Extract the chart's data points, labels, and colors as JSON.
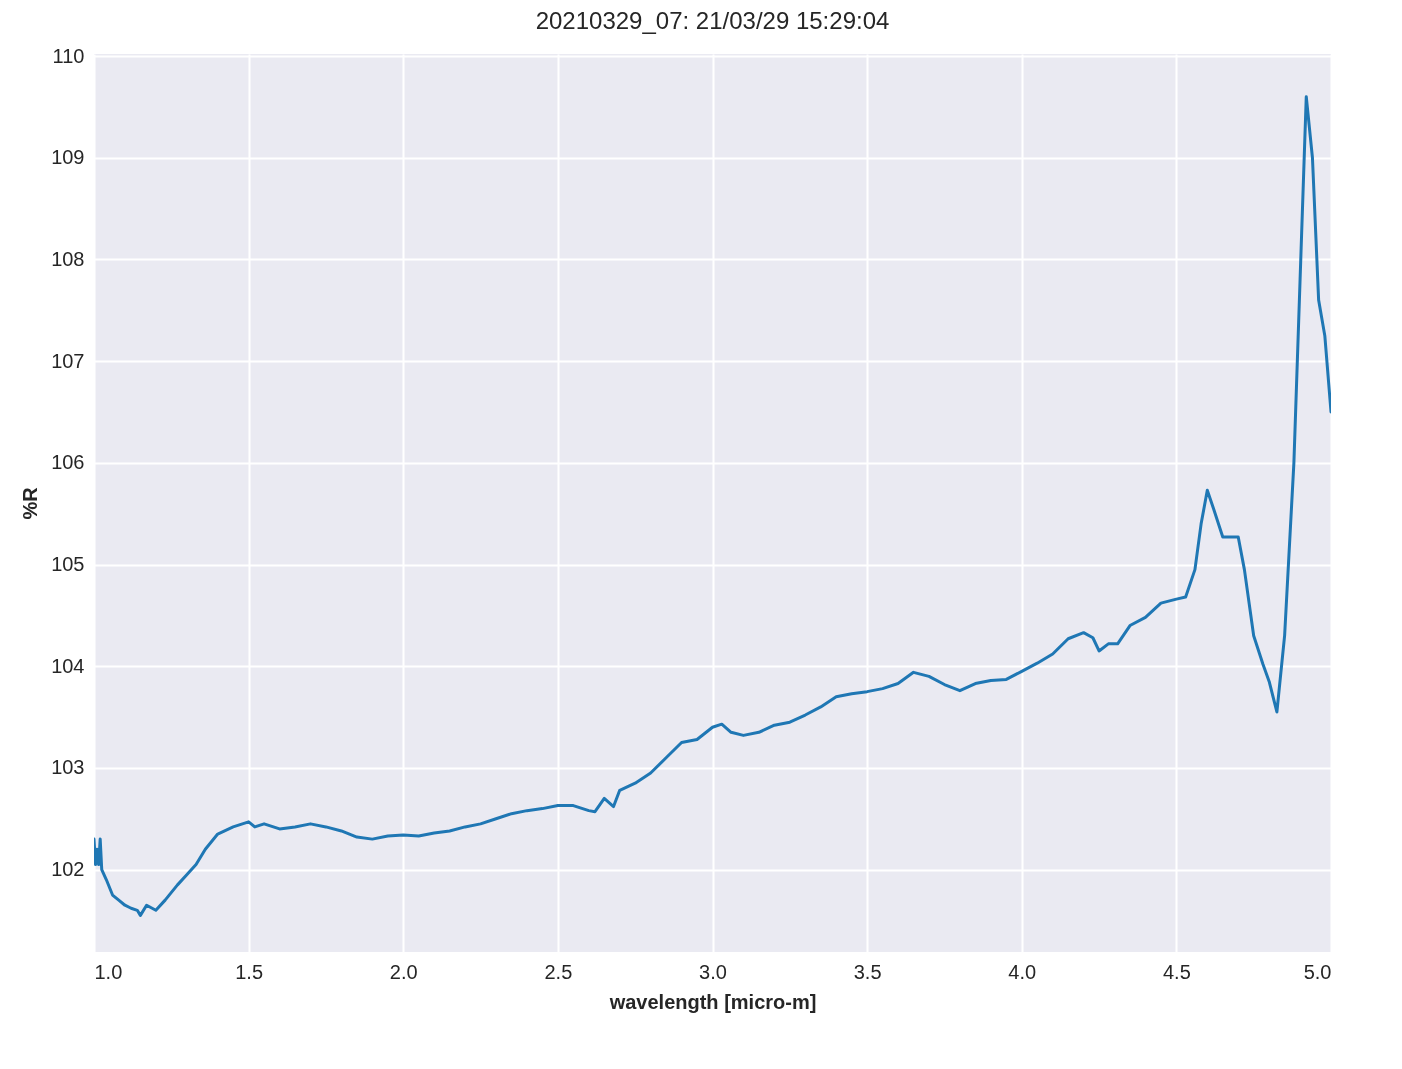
{
  "chart_data": {
    "type": "line",
    "title": "20210329_07:  21/03/29 15:29:04",
    "xlabel": "wavelength [micro-m]",
    "ylabel": "%R",
    "xlim": [
      1.0,
      5.0
    ],
    "xticks": [
      {
        "value": 1.0,
        "label": "1.0"
      },
      {
        "value": 1.5,
        "label": "1.5"
      },
      {
        "value": 2.0,
        "label": "2.0"
      },
      {
        "value": 2.5,
        "label": "2.5"
      },
      {
        "value": 3.0,
        "label": "3.0"
      },
      {
        "value": 3.5,
        "label": "3.5"
      },
      {
        "value": 4.0,
        "label": "4.0"
      },
      {
        "value": 4.5,
        "label": "4.5"
      },
      {
        "value": 5.0,
        "label": "5.0"
      }
    ],
    "ylim": [
      101.19,
      110.02
    ],
    "yticks": [
      102,
      103,
      104,
      105,
      106,
      107,
      108,
      109,
      110
    ],
    "grid": true,
    "line_style": "solid",
    "marker": "none",
    "x": [
      1.0,
      1.005,
      1.01,
      1.015,
      1.02,
      1.025,
      1.04,
      1.06,
      1.08,
      1.1,
      1.12,
      1.14,
      1.15,
      1.17,
      1.2,
      1.23,
      1.27,
      1.3,
      1.33,
      1.36,
      1.4,
      1.45,
      1.5,
      1.52,
      1.55,
      1.6,
      1.65,
      1.7,
      1.75,
      1.8,
      1.85,
      1.9,
      1.95,
      2.0,
      2.05,
      2.1,
      2.15,
      2.2,
      2.25,
      2.3,
      2.35,
      2.4,
      2.45,
      2.5,
      2.55,
      2.6,
      2.62,
      2.65,
      2.68,
      2.7,
      2.75,
      2.8,
      2.85,
      2.9,
      2.95,
      3.0,
      3.03,
      3.06,
      3.1,
      3.15,
      3.2,
      3.25,
      3.3,
      3.35,
      3.4,
      3.45,
      3.5,
      3.55,
      3.6,
      3.65,
      3.7,
      3.75,
      3.8,
      3.85,
      3.9,
      3.95,
      4.0,
      4.05,
      4.1,
      4.15,
      4.2,
      4.23,
      4.25,
      4.28,
      4.31,
      4.35,
      4.4,
      4.45,
      4.5,
      4.53,
      4.56,
      4.58,
      4.6,
      4.62,
      4.65,
      4.7,
      4.72,
      4.75,
      4.78,
      4.8,
      4.825,
      4.85,
      4.88,
      4.9,
      4.92,
      4.94,
      4.96,
      4.98,
      5.0
    ],
    "series": [
      {
        "color": "#1f77b4",
        "values": [
          102.3,
          102.05,
          102.2,
          102.05,
          102.3,
          102.0,
          101.9,
          101.75,
          101.7,
          101.65,
          101.62,
          101.6,
          101.55,
          101.65,
          101.6,
          101.7,
          101.85,
          101.95,
          102.05,
          102.2,
          102.35,
          102.42,
          102.47,
          102.42,
          102.45,
          102.4,
          102.42,
          102.45,
          102.42,
          102.38,
          102.32,
          102.3,
          102.33,
          102.34,
          102.33,
          102.36,
          102.38,
          102.42,
          102.45,
          102.5,
          102.55,
          102.58,
          102.6,
          102.63,
          102.63,
          102.58,
          102.57,
          102.7,
          102.62,
          102.78,
          102.85,
          102.95,
          103.1,
          103.25,
          103.28,
          103.4,
          103.43,
          103.35,
          103.32,
          103.35,
          103.42,
          103.45,
          103.52,
          103.6,
          103.7,
          103.73,
          103.75,
          103.78,
          103.83,
          103.94,
          103.9,
          103.82,
          103.76,
          103.83,
          103.86,
          103.87,
          103.95,
          104.03,
          104.12,
          104.27,
          104.33,
          104.28,
          104.15,
          104.22,
          104.22,
          104.4,
          104.48,
          104.62,
          104.66,
          104.68,
          104.95,
          105.4,
          105.73,
          105.55,
          105.27,
          105.27,
          104.95,
          104.3,
          104.02,
          103.85,
          103.55,
          104.3,
          106.0,
          107.8,
          109.6,
          109.0,
          107.6,
          107.25,
          106.5
        ]
      }
    ]
  }
}
